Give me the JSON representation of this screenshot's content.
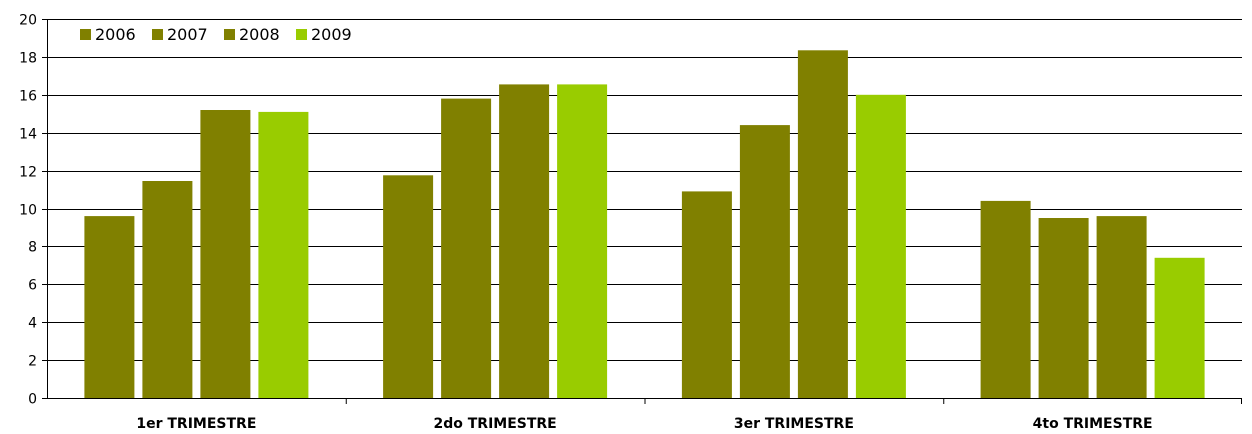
{
  "chart_data": {
    "type": "bar",
    "categories": [
      "1er TRIMESTRE",
      "2do TRIMESTRE",
      "3er TRIMESTRE",
      "4to TRIMESTRE"
    ],
    "series": [
      {
        "name": "2006",
        "color": "#808000",
        "values": [
          9.6,
          11.75,
          10.9,
          10.4
        ]
      },
      {
        "name": "2007",
        "color": "#808000",
        "values": [
          11.45,
          15.8,
          14.4,
          9.5
        ]
      },
      {
        "name": "2008",
        "color": "#808000",
        "values": [
          15.2,
          16.55,
          18.35,
          9.6
        ]
      },
      {
        "name": "2009",
        "color": "#99cc00",
        "values": [
          15.1,
          16.55,
          16.0,
          7.4
        ]
      }
    ],
    "yticks": [
      0,
      2,
      4,
      6,
      8,
      10,
      12,
      14,
      16,
      18,
      20
    ],
    "ylim": [
      0,
      20
    ],
    "grid": true,
    "legend_position": "top-left"
  }
}
